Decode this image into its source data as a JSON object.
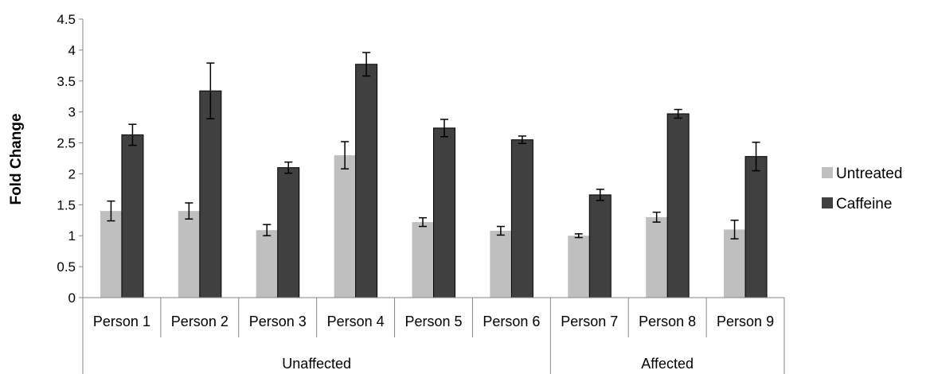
{
  "chart_data": {
    "type": "bar",
    "title": "",
    "xlabel": "",
    "ylabel": "Fold Change",
    "ylim": [
      0,
      4.5
    ],
    "yticks": [
      "0",
      "0.5",
      "1",
      "1.5",
      "2",
      "2.5",
      "3",
      "3.5",
      "4",
      "4.5"
    ],
    "categories": [
      "Person 1",
      "Person 2",
      "Person 3",
      "Person 4",
      "Person 5",
      "Person 6",
      "Person 7",
      "Person 8",
      "Person 9"
    ],
    "groups": [
      {
        "label": "Unaffected",
        "categories": 6
      },
      {
        "label": "Affected",
        "categories": 3
      }
    ],
    "series": [
      {
        "name": "Untreated",
        "color": "#bfbfbf",
        "values": [
          1.4,
          1.4,
          1.09,
          2.3,
          1.22,
          1.08,
          1.0,
          1.3,
          1.1
        ],
        "errors": [
          0.16,
          0.13,
          0.09,
          0.22,
          0.07,
          0.07,
          0.03,
          0.08,
          0.15
        ]
      },
      {
        "name": "Caffeine",
        "color": "#404040",
        "values": [
          2.63,
          3.34,
          2.1,
          3.77,
          2.74,
          2.55,
          1.66,
          2.97,
          2.28
        ],
        "errors": [
          0.17,
          0.45,
          0.09,
          0.19,
          0.14,
          0.06,
          0.09,
          0.07,
          0.23
        ]
      }
    ],
    "grid": false,
    "legend": "right"
  }
}
